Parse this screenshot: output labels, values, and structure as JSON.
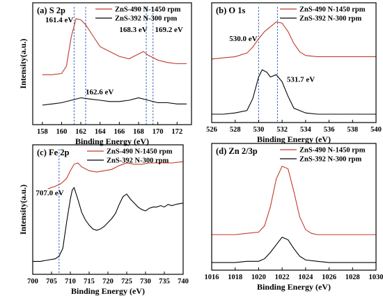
{
  "colors": {
    "red_series": "#c0392b",
    "black_series": "#000000",
    "guide_line": "#2a5fb8"
  },
  "chart_data": [
    {
      "id": "a",
      "type": "line",
      "panel_label": "(a)  S 2p",
      "xlabel": "Binding Energy (eV)",
      "ylabel": "Intensity(a.u.)",
      "xlim": [
        157,
        173.5
      ],
      "ylim": [
        0,
        100
      ],
      "x_ticks": [
        158,
        160,
        162,
        164,
        166,
        168,
        170,
        172
      ],
      "series": [
        {
          "name": "ZnS-490 N-1450 rpm",
          "color": "#c0392b",
          "points": [
            [
              158,
              41
            ],
            [
              159,
              41
            ],
            [
              160,
              42
            ],
            [
              160.5,
              48
            ],
            [
              161,
              72
            ],
            [
              161.5,
              87
            ],
            [
              162,
              86
            ],
            [
              162.5,
              82
            ],
            [
              163,
              76
            ],
            [
              163.5,
              70
            ],
            [
              164,
              64
            ],
            [
              165,
              60
            ],
            [
              166,
              56
            ],
            [
              167,
              54
            ],
            [
              168,
              58
            ],
            [
              168.5,
              60
            ],
            [
              169,
              57
            ],
            [
              170,
              53
            ],
            [
              171,
              51
            ],
            [
              172,
              50
            ],
            [
              173,
              50
            ]
          ]
        },
        {
          "name": "ZnS-392 N-300 rpm",
          "color": "#000000",
          "points": [
            [
              158,
              16
            ],
            [
              159,
              17
            ],
            [
              160,
              18
            ],
            [
              161,
              20
            ],
            [
              162,
              22
            ],
            [
              163,
              21
            ],
            [
              164,
              20
            ],
            [
              165,
              19
            ],
            [
              166,
              19
            ],
            [
              167,
              20
            ],
            [
              168,
              22
            ],
            [
              169,
              20
            ],
            [
              170,
              18
            ],
            [
              171,
              18
            ],
            [
              172,
              17
            ],
            [
              173,
              17
            ]
          ]
        }
      ],
      "vlines": [
        161.3,
        162.5,
        168.8,
        169.5
      ],
      "annotations": [
        {
          "text": "161.4 eV",
          "x": 158.3,
          "y": 84
        },
        {
          "text": "168.3 eV",
          "x": 166.0,
          "y": 76
        },
        {
          "text": "169.2 eV",
          "x": 169.7,
          "y": 76
        },
        {
          "text": "162.6 eV",
          "x": 162.5,
          "y": 25
        }
      ]
    },
    {
      "id": "b",
      "type": "line",
      "panel_label": "(b)  O 1s",
      "xlabel": "Binding Energy (eV)",
      "ylabel": "",
      "xlim": [
        526,
        540
      ],
      "ylim": [
        0,
        100
      ],
      "x_ticks": [
        526,
        528,
        530,
        532,
        534,
        536,
        538,
        540
      ],
      "series": [
        {
          "name": "ZnS-490 N-1450 rpm",
          "color": "#c0392b",
          "points": [
            [
              526,
              53
            ],
            [
              527,
              54
            ],
            [
              528,
              55
            ],
            [
              529,
              58
            ],
            [
              529.5,
              63
            ],
            [
              530,
              70
            ],
            [
              530.5,
              76
            ],
            [
              531,
              80
            ],
            [
              531.5,
              84
            ],
            [
              532,
              83
            ],
            [
              532.5,
              76
            ],
            [
              533,
              66
            ],
            [
              533.5,
              59
            ],
            [
              534,
              56
            ],
            [
              535,
              55
            ],
            [
              536,
              55
            ],
            [
              537,
              55
            ],
            [
              538,
              55
            ],
            [
              539,
              55
            ],
            [
              540,
              55
            ]
          ]
        },
        {
          "name": "ZnS-392 N-300 rpm",
          "color": "#000000",
          "points": [
            [
              526,
              7
            ],
            [
              527,
              7
            ],
            [
              528,
              8
            ],
            [
              529,
              10
            ],
            [
              529.5,
              20
            ],
            [
              530,
              38
            ],
            [
              530.3,
              44
            ],
            [
              530.7,
              42
            ],
            [
              531,
              38
            ],
            [
              531.5,
              40
            ],
            [
              532,
              34
            ],
            [
              532.5,
              22
            ],
            [
              533,
              12
            ],
            [
              534,
              8
            ],
            [
              535,
              7
            ],
            [
              536,
              7
            ],
            [
              537,
              7
            ],
            [
              538,
              7
            ],
            [
              539,
              7
            ],
            [
              540,
              7
            ]
          ]
        }
      ],
      "vlines": [
        530.0,
        531.6
      ],
      "annotations": [
        {
          "text": "530.0 eV",
          "x": 527.5,
          "y": 68
        },
        {
          "text": "531.7 eV",
          "x": 532.4,
          "y": 34
        }
      ]
    },
    {
      "id": "c",
      "type": "line",
      "panel_label": "(c)  Fe 2p",
      "xlabel": "Binding Energy (eV)",
      "ylabel": "Intensity(a.u.)",
      "xlim": [
        700,
        740
      ],
      "ylim": [
        0,
        100
      ],
      "x_ticks": [
        700,
        705,
        710,
        715,
        720,
        725,
        730,
        735,
        740
      ],
      "series": [
        {
          "name": "ZnS-490 N-1450 rpm",
          "color": "#c0392b",
          "points": [
            [
              704,
              66
            ],
            [
              706,
              68
            ],
            [
              707.5,
              70
            ],
            [
              709,
              74
            ],
            [
              710,
              80
            ],
            [
              711,
              85
            ],
            [
              712,
              86
            ],
            [
              713,
              83
            ],
            [
              715,
              80
            ],
            [
              717,
              79
            ],
            [
              719,
              80
            ],
            [
              721,
              81
            ],
            [
              723,
              84
            ],
            [
              725,
              86
            ],
            [
              727,
              85
            ],
            [
              729,
              85
            ],
            [
              731,
              86
            ],
            [
              733,
              86
            ],
            [
              735,
              86
            ],
            [
              737,
              86
            ],
            [
              740,
              87
            ]
          ]
        },
        {
          "name": "ZnS-392 N-300 rpm",
          "color": "#000000",
          "points": [
            [
              700,
              10
            ],
            [
              702,
              10
            ],
            [
              704,
              11
            ],
            [
              706,
              12
            ],
            [
              707,
              14
            ],
            [
              708,
              20
            ],
            [
              709,
              40
            ],
            [
              710,
              58
            ],
            [
              710.5,
              65
            ],
            [
              711,
              67
            ],
            [
              712,
              58
            ],
            [
              713,
              48
            ],
            [
              714,
              42
            ],
            [
              715,
              38
            ],
            [
              716,
              35
            ],
            [
              717,
              34
            ],
            [
              718,
              35
            ],
            [
              719,
              37
            ],
            [
              720,
              40
            ],
            [
              721,
              43
            ],
            [
              722,
              47
            ],
            [
              723,
              54
            ],
            [
              724,
              60
            ],
            [
              725,
              62
            ],
            [
              726,
              58
            ],
            [
              727,
              55
            ],
            [
              728,
              52
            ],
            [
              729,
              50
            ],
            [
              730,
              49
            ],
            [
              731,
              51
            ],
            [
              732,
              52
            ],
            [
              733,
              52
            ],
            [
              734,
              53
            ],
            [
              735,
              52
            ],
            [
              736,
              54
            ],
            [
              737,
              53
            ],
            [
              738,
              54
            ],
            [
              740,
              55
            ]
          ]
        }
      ],
      "vlines": [
        707.0
      ],
      "annotations": [
        {
          "text": "707.0 eV",
          "x": 700.8,
          "y": 61
        }
      ]
    },
    {
      "id": "d",
      "type": "line",
      "panel_label": "(d)  Zn 2/3p",
      "xlabel": "Binding Energy (eV)",
      "ylabel": "",
      "xlim": [
        1016,
        1030
      ],
      "ylim": [
        0,
        100
      ],
      "x_ticks": [
        1016,
        1018,
        1020,
        1022,
        1024,
        1026,
        1028,
        1030
      ],
      "series": [
        {
          "name": "ZnS-490 N-1450 rpm",
          "color": "#c0392b",
          "points": [
            [
              1016,
              28
            ],
            [
              1017,
              28
            ],
            [
              1018,
              28
            ],
            [
              1019,
              29
            ],
            [
              1020,
              30
            ],
            [
              1020.5,
              35
            ],
            [
              1021,
              50
            ],
            [
              1021.5,
              72
            ],
            [
              1022,
              82
            ],
            [
              1022.5,
              80
            ],
            [
              1023,
              62
            ],
            [
              1023.5,
              42
            ],
            [
              1024,
              32
            ],
            [
              1024.5,
              29
            ],
            [
              1025,
              28
            ],
            [
              1026,
              28
            ],
            [
              1027,
              28
            ],
            [
              1028,
              28
            ],
            [
              1029,
              28
            ],
            [
              1030,
              28
            ]
          ]
        },
        {
          "name": "ZnS-392 N-300 rpm",
          "color": "#000000",
          "points": [
            [
              1016,
              6
            ],
            [
              1017,
              6
            ],
            [
              1018,
              6
            ],
            [
              1019,
              7
            ],
            [
              1020,
              7
            ],
            [
              1020.5,
              9
            ],
            [
              1021,
              14
            ],
            [
              1021.5,
              20
            ],
            [
              1022,
              26
            ],
            [
              1022.5,
              24
            ],
            [
              1023,
              17
            ],
            [
              1023.5,
              11
            ],
            [
              1024,
              8
            ],
            [
              1025,
              7
            ],
            [
              1026,
              6
            ],
            [
              1027,
              6
            ],
            [
              1028,
              6
            ],
            [
              1029,
              6
            ],
            [
              1030,
              6
            ]
          ]
        }
      ],
      "vlines": [],
      "annotations": []
    }
  ]
}
